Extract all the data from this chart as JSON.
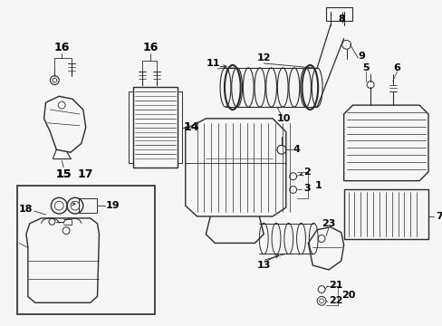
{
  "bg_color": "#f0f0f0",
  "line_color": "#2a2a2a",
  "label_color": "#000000",
  "fig_width": 4.89,
  "fig_height": 3.6,
  "dpi": 100
}
